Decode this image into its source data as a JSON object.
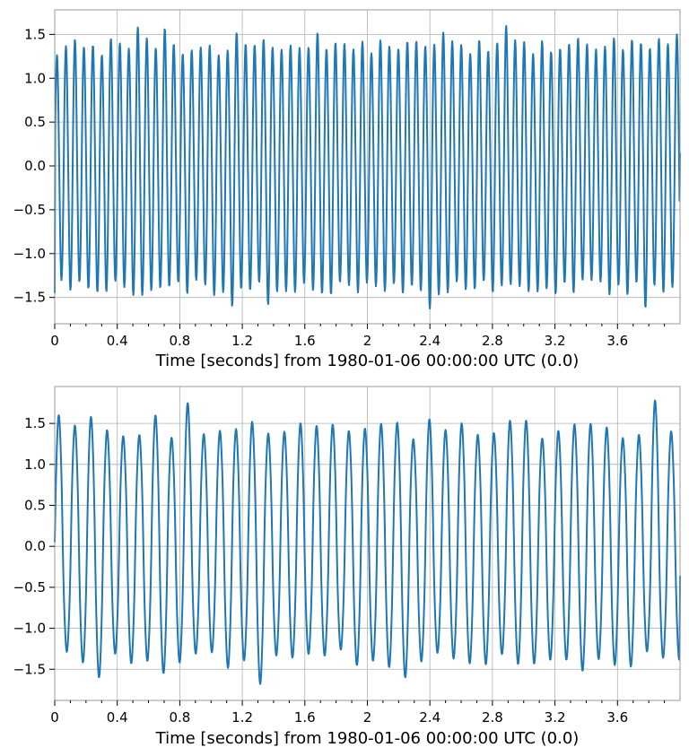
{
  "chart_data": [
    {
      "type": "line",
      "title": "",
      "xlabel": "Time [seconds] from 1980-01-06 00:00:00 UTC (0.0)",
      "ylabel": "",
      "xlim": [
        0,
        4.0
      ],
      "ylim": [
        -1.8,
        1.78
      ],
      "x_ticks": [
        0,
        0.4,
        0.8,
        1.2,
        1.6,
        2.0,
        2.4,
        2.8,
        3.2,
        3.6
      ],
      "x_tick_labels": [
        "0",
        "0.4",
        "0.8",
        "1.2",
        "1.6",
        "2",
        "2.4",
        "2.8",
        "3.2",
        "3.6"
      ],
      "y_ticks": [
        -1.5,
        -1.0,
        -0.5,
        0.0,
        0.5,
        1.0,
        1.5
      ],
      "y_tick_labels": [
        "−1.5",
        "−1.0",
        "−0.5",
        "0.0",
        "0.5",
        "1.0",
        "1.5"
      ],
      "grid": true,
      "color": "#1f77b4",
      "signal": {
        "frequency_hz": 17.4,
        "amplitude": 1.4,
        "harmonic": {
          "multiple": 2,
          "amplitude": 0.08
        },
        "peak_range": [
          1.26,
          1.62
        ],
        "trough_range": [
          -1.63,
          -1.3
        ],
        "start_value": -1.45,
        "end_value": 0.15
      },
      "series": [
        {
          "peaks": [
            {
              "x": 0.52,
              "y": 1.58
            },
            {
              "x": 0.69,
              "y": 1.57
            },
            {
              "x": 1.18,
              "y": 1.52
            },
            {
              "x": 1.67,
              "y": 1.52
            },
            {
              "x": 2.49,
              "y": 1.52
            },
            {
              "x": 2.88,
              "y": 1.6
            },
            {
              "x": 3.97,
              "y": 1.5
            }
          ],
          "troughs": [
            {
              "x": 1.16,
              "y": -1.6
            },
            {
              "x": 1.36,
              "y": -1.58
            },
            {
              "x": 2.41,
              "y": -1.63
            },
            {
              "x": 3.77,
              "y": -1.62
            }
          ]
        }
      ]
    },
    {
      "type": "line",
      "title": "",
      "xlabel": "Time [seconds] from 1980-01-06 00:00:00 UTC (0.0)",
      "ylabel": "",
      "xlim": [
        0,
        4.0
      ],
      "ylim": [
        -1.88,
        1.95
      ],
      "x_ticks": [
        0,
        0.4,
        0.8,
        1.2,
        1.6,
        2.0,
        2.4,
        2.8,
        3.2,
        3.6
      ],
      "x_tick_labels": [
        "0",
        "0.4",
        "0.8",
        "1.2",
        "1.6",
        "2",
        "2.4",
        "2.8",
        "3.2",
        "3.6"
      ],
      "y_ticks": [
        -1.5,
        -1.0,
        -0.5,
        0.0,
        0.5,
        1.0,
        1.5
      ],
      "y_tick_labels": [
        "−1.5",
        "−1.0",
        "−0.5",
        "0.0",
        "0.5",
        "1.0",
        "1.5"
      ],
      "grid": true,
      "color": "#1f77b4",
      "signal": {
        "frequency_hz": 9.7,
        "amplitude": 1.42,
        "harmonic": {
          "multiple": 3,
          "amplitude": 0.12
        },
        "peak_range": [
          1.3,
          1.78
        ],
        "trough_range": [
          -1.68,
          -1.25
        ],
        "start_value": 0.05,
        "end_value": -0.36
      },
      "series": [
        {
          "peaks": [
            {
              "x": 0.03,
              "y": 1.6
            },
            {
              "x": 0.23,
              "y": 1.58
            },
            {
              "x": 0.62,
              "y": 1.6
            },
            {
              "x": 0.83,
              "y": 1.75
            },
            {
              "x": 1.23,
              "y": 1.52
            },
            {
              "x": 2.43,
              "y": 1.55
            },
            {
              "x": 3.82,
              "y": 1.78
            }
          ],
          "troughs": [
            {
              "x": 0.27,
              "y": -1.6
            },
            {
              "x": 0.72,
              "y": -1.55
            },
            {
              "x": 1.28,
              "y": -1.68
            },
            {
              "x": 2.29,
              "y": -1.6
            },
            {
              "x": 3.33,
              "y": -1.52
            }
          ]
        }
      ]
    }
  ]
}
